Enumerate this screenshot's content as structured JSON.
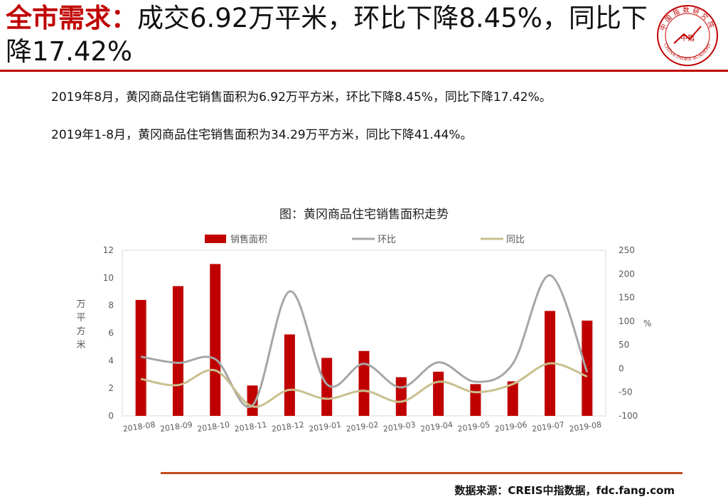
{
  "header": {
    "lead": "全市需求",
    "colon": "：",
    "rest": "成交6.92万平米，环比下降8.45%，同比下降17.42%"
  },
  "logo": {
    "top_text": "中国指数研究院",
    "bottom_text": "CHINA INDEX ACADEMY",
    "center_text": "中指",
    "color": "#c00000"
  },
  "body": {
    "line1": "2019年8月，黄冈商品住宅销售面积为6.92万平方米，环比下降8.45%，同比下降17.42%。",
    "line2": "2019年1-8月，黄冈商品住宅销售面积为34.29万平方米，同比下降41.44%。"
  },
  "chart_title": "图：黄冈商品住宅销售面积走势",
  "chart_data": {
    "type": "bar",
    "categories": [
      "2018-08",
      "2018-09",
      "2018-10",
      "2018-11",
      "2018-12",
      "2019-01",
      "2019-02",
      "2019-03",
      "2019-04",
      "2019-05",
      "2019-06",
      "2019-07",
      "2019-08"
    ],
    "series": [
      {
        "name": "销售面积",
        "kind": "bar",
        "axis": "left",
        "color": "#c00000",
        "values": [
          8.4,
          9.4,
          11.0,
          2.2,
          5.9,
          4.2,
          4.7,
          2.8,
          3.2,
          2.3,
          2.5,
          7.6,
          6.9
        ]
      },
      {
        "name": "环比",
        "kind": "line",
        "axis": "right",
        "color": "#a6a6a6",
        "values": [
          25,
          12,
          20,
          -78,
          163,
          -33,
          10,
          -40,
          13,
          -28,
          10,
          197,
          -8
        ]
      },
      {
        "name": "同比",
        "kind": "line",
        "axis": "right",
        "color": "#c9bf8f",
        "values": [
          -22,
          -35,
          -4,
          -80,
          -45,
          -64,
          -47,
          -70,
          -28,
          -50,
          -33,
          11,
          -17
        ]
      }
    ],
    "left_axis": {
      "label": "万平方米",
      "min": 0,
      "max": 12,
      "ticks": [
        0,
        2,
        4,
        6,
        8,
        10,
        12
      ]
    },
    "right_axis": {
      "label": "%",
      "min": -100,
      "max": 250,
      "ticks": [
        -100,
        -50,
        0,
        50,
        100,
        150,
        200,
        250
      ]
    },
    "legend_position": "top",
    "grid": false
  },
  "source": "数据来源：CREIS中指数据，fdc.fang.com"
}
